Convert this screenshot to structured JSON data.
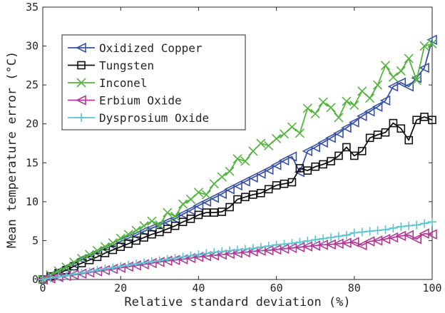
{
  "chart_data": {
    "type": "line",
    "xlabel": "Relative standard deviation (%)",
    "ylabel": "Mean temperature error (°C)",
    "xlim": [
      0,
      100
    ],
    "ylim": [
      0,
      35
    ],
    "xticks": [
      0,
      20,
      40,
      60,
      80,
      100
    ],
    "yticks": [
      0,
      5,
      10,
      15,
      20,
      25,
      30,
      35
    ],
    "grid": false,
    "legend_position": "top-left",
    "series": [
      {
        "name": "Oxidized Copper",
        "color": "#3a52a3",
        "marker": "triangle-left",
        "x": [
          0,
          2,
          4,
          6,
          8,
          10,
          12,
          14,
          16,
          18,
          20,
          22,
          24,
          26,
          28,
          30,
          32,
          34,
          36,
          38,
          40,
          42,
          44,
          46,
          48,
          50,
          52,
          54,
          56,
          58,
          60,
          62,
          64,
          66,
          68,
          70,
          72,
          74,
          76,
          78,
          80,
          82,
          84,
          86,
          88,
          90,
          92,
          94,
          96,
          98,
          100
        ],
        "y": [
          0,
          0.5,
          1.0,
          1.5,
          2.0,
          2.6,
          3.0,
          3.5,
          4.0,
          4.4,
          4.9,
          5.3,
          5.7,
          6.2,
          6.6,
          7.0,
          7.4,
          7.8,
          8.4,
          8.9,
          9.5,
          10.0,
          10.5,
          11.0,
          11.6,
          12.1,
          12.6,
          13.1,
          13.6,
          14.1,
          14.7,
          15.3,
          15.8,
          13.8,
          16.5,
          17.0,
          17.6,
          18.2,
          18.8,
          19.5,
          20.2,
          21.0,
          21.6,
          22.2,
          23.0,
          24.8,
          25.3,
          24.8,
          25.9,
          27.2,
          30.8
        ]
      },
      {
        "name": "Tungsten",
        "color": "#111111",
        "marker": "square",
        "x": [
          0,
          2,
          4,
          6,
          8,
          10,
          12,
          14,
          16,
          18,
          20,
          22,
          24,
          26,
          28,
          30,
          32,
          34,
          36,
          38,
          40,
          42,
          44,
          46,
          48,
          50,
          52,
          54,
          56,
          58,
          60,
          62,
          64,
          66,
          68,
          70,
          72,
          74,
          76,
          78,
          80,
          82,
          84,
          86,
          88,
          90,
          92,
          94,
          96,
          98,
          100
        ],
        "y": [
          0,
          0.4,
          0.8,
          1.2,
          1.7,
          2.1,
          2.5,
          2.9,
          3.4,
          3.8,
          4.2,
          4.6,
          5.0,
          5.4,
          5.8,
          6.1,
          6.5,
          6.9,
          7.4,
          7.8,
          8.3,
          8.6,
          8.6,
          8.7,
          9.3,
          10.3,
          10.6,
          10.9,
          11.1,
          11.6,
          12.1,
          12.3,
          12.5,
          14.3,
          14.0,
          14.5,
          14.8,
          15.2,
          15.9,
          17.0,
          15.9,
          16.5,
          18.2,
          18.6,
          18.9,
          20.1,
          19.4,
          17.9,
          20.5,
          20.9,
          20.5
        ]
      },
      {
        "name": "Inconel",
        "color": "#55b440",
        "marker": "x",
        "x": [
          0,
          2,
          4,
          6,
          8,
          10,
          12,
          14,
          16,
          18,
          20,
          22,
          24,
          26,
          28,
          30,
          32,
          34,
          36,
          38,
          40,
          42,
          44,
          46,
          48,
          50,
          52,
          54,
          56,
          58,
          60,
          62,
          64,
          66,
          68,
          70,
          72,
          74,
          76,
          78,
          80,
          82,
          84,
          86,
          88,
          90,
          92,
          94,
          96,
          98,
          100
        ],
        "y": [
          0,
          0.6,
          1.1,
          1.6,
          2.2,
          2.7,
          3.2,
          3.7,
          4.2,
          4.7,
          5.3,
          5.8,
          6.3,
          6.9,
          7.5,
          7.0,
          8.6,
          8.1,
          9.7,
          10.3,
          11.2,
          10.9,
          12.3,
          13.2,
          13.9,
          15.5,
          15.2,
          16.5,
          17.5,
          17.2,
          18.1,
          18.7,
          19.6,
          18.8,
          22.0,
          21.3,
          22.8,
          22.1,
          20.8,
          22.9,
          22.4,
          24.2,
          23.3,
          25.0,
          27.5,
          26.0,
          26.8,
          28.4,
          25.6,
          30.0,
          30.3
        ]
      },
      {
        "name": "Erbium Oxide",
        "color": "#b23a96",
        "marker": "triangle-left",
        "x": [
          0,
          2,
          4,
          6,
          8,
          10,
          12,
          14,
          16,
          18,
          20,
          22,
          24,
          26,
          28,
          30,
          32,
          34,
          36,
          38,
          40,
          42,
          44,
          46,
          48,
          50,
          52,
          54,
          56,
          58,
          60,
          62,
          64,
          66,
          68,
          70,
          72,
          74,
          76,
          78,
          80,
          82,
          84,
          86,
          88,
          90,
          92,
          94,
          96,
          98,
          100
        ],
        "y": [
          0,
          0.15,
          0.3,
          0.45,
          0.6,
          0.75,
          0.9,
          1.05,
          1.2,
          1.35,
          1.5,
          1.65,
          1.8,
          1.95,
          2.1,
          2.25,
          2.4,
          2.5,
          2.6,
          2.75,
          2.9,
          3.0,
          3.1,
          3.2,
          3.3,
          3.4,
          3.5,
          3.6,
          3.7,
          3.75,
          3.85,
          3.95,
          4.05,
          4.15,
          4.25,
          4.35,
          4.45,
          4.5,
          4.6,
          4.7,
          4.8,
          4.4,
          4.9,
          5.0,
          5.2,
          5.4,
          5.6,
          5.7,
          5.2,
          5.9,
          5.8
        ]
      },
      {
        "name": "Dysprosium Oxide",
        "color": "#5cc5d2",
        "marker": "plus",
        "x": [
          0,
          2,
          4,
          6,
          8,
          10,
          12,
          14,
          16,
          18,
          20,
          22,
          24,
          26,
          28,
          30,
          32,
          34,
          36,
          38,
          40,
          42,
          44,
          46,
          48,
          50,
          52,
          54,
          56,
          58,
          60,
          62,
          64,
          66,
          68,
          70,
          72,
          74,
          76,
          78,
          80,
          82,
          84,
          86,
          88,
          90,
          92,
          94,
          96,
          98,
          100
        ],
        "y": [
          0,
          0.2,
          0.35,
          0.5,
          0.7,
          0.85,
          1.0,
          1.2,
          1.35,
          1.5,
          1.7,
          1.85,
          2.0,
          2.15,
          2.3,
          2.45,
          2.6,
          2.75,
          2.9,
          3.05,
          3.2,
          3.35,
          3.5,
          3.6,
          3.7,
          3.8,
          3.9,
          4.0,
          4.15,
          4.3,
          4.45,
          4.55,
          4.65,
          4.8,
          4.95,
          5.1,
          5.25,
          5.4,
          5.55,
          5.7,
          6.0,
          6.1,
          6.2,
          6.3,
          6.4,
          6.6,
          6.8,
          6.9,
          7.0,
          7.2,
          7.4
        ]
      }
    ]
  }
}
